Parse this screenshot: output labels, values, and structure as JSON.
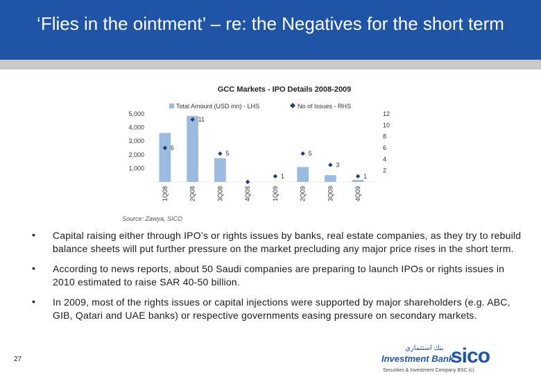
{
  "slide": {
    "title": "‘Flies in the ointment’ – re: the Negatives for   the short term",
    "page_number": "27",
    "source": "Source: Zawya, SICO"
  },
  "bullets": [
    "Capital raising either through IPO’s or rights issues by banks, real estate companies, as they try to rebuild balance sheets will put further pressure on the market precluding any major price rises in the short term.",
    "According to news reports, about 50 Saudi companies are preparing to launch IPOs or rights issues in 2010 estimated to raise SAR 40-50 billion.",
    "In 2009, most of the rights issues or capital injections were supported by major shareholders (e.g. ABC, GIB, Qatari and UAE banks) or respective governments easing pressure on secondary markets."
  ],
  "logo": {
    "brand": "sico",
    "arabic": "بنك استثماري",
    "subtitle": "Investment Bank",
    "fine_print": "Securities & Investment Company BSC (c)"
  },
  "colors": {
    "title_bg": "#1f54a6",
    "bar": "#9bbbe0",
    "marker": "#1f3f7a"
  },
  "chart_data": {
    "type": "bar",
    "title": "GCC Markets  - IPO Details 2008-2009",
    "categories": [
      "1Q08",
      "2Q08",
      "3Q08",
      "4Q08",
      "1Q09",
      "2Q09",
      "3Q09",
      "4Q09"
    ],
    "series": [
      {
        "name": "Total Amount (USD mn) - LHS",
        "kind": "bar",
        "axis": "left",
        "values": [
          3600,
          4850,
          1750,
          0,
          0,
          1100,
          500,
          150
        ]
      },
      {
        "name": "No of Issues - RHS",
        "kind": "marker",
        "axis": "right",
        "values": [
          6,
          11,
          5,
          0,
          1,
          5,
          3,
          1
        ]
      }
    ],
    "marker_labels": [
      "6",
      "11",
      "5",
      "",
      "1",
      "5",
      "3",
      "1"
    ],
    "left_axis": {
      "ylim": [
        0,
        5000
      ],
      "ticks": [
        "1,000",
        "2,000",
        "3,000",
        "4,000",
        "5,000"
      ],
      "tick_values": [
        1000,
        2000,
        3000,
        4000,
        5000
      ]
    },
    "right_axis": {
      "ylim": [
        0,
        12
      ],
      "ticks": [
        "2",
        "4",
        "6",
        "8",
        "10",
        "12"
      ],
      "tick_values": [
        2,
        4,
        6,
        8,
        10,
        12
      ]
    }
  }
}
